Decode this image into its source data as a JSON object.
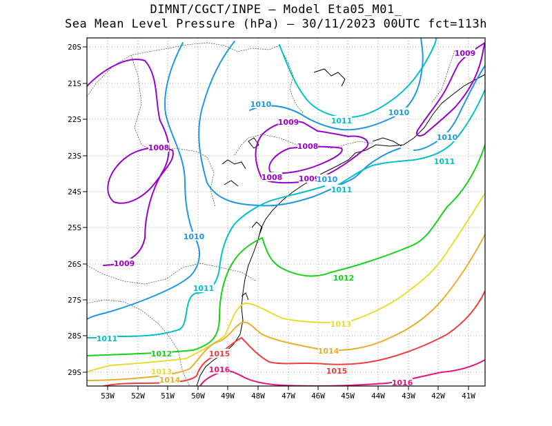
{
  "header": {
    "line1": "DIMNT/CGCT/INPE –  Model Eta05_M01_",
    "line2": "Sea Mean Level Pressure (hPa) – 30/11/2023 00UTC fct=113h"
  },
  "axes": {
    "lat_ticks": [
      "20S",
      "21S",
      "22S",
      "23S",
      "24S",
      "25S",
      "26S",
      "27S",
      "28S",
      "29S"
    ],
    "lon_ticks": [
      "53W",
      "52W",
      "51W",
      "50W",
      "49W",
      "48W",
      "47W",
      "46W",
      "45W",
      "44W",
      "43W",
      "42W",
      "41W"
    ]
  },
  "colors": {
    "1008": "#9900cc",
    "1009": "#9900cc",
    "1010": "#1e96e6",
    "1011": "#00c0c8",
    "1012": "#14d214",
    "1013": "#e6dc32",
    "1014": "#e6af2d",
    "1015": "#f03c3c",
    "1016": "#e61478",
    "coast": "#000000",
    "border": "#444444",
    "grid": "#888888"
  },
  "contour_labels": [
    {
      "text": "1009",
      "level": "1009"
    },
    {
      "text": "1008",
      "level": "1008"
    },
    {
      "text": "1009",
      "level": "1009"
    },
    {
      "text": "1010",
      "level": "1010"
    },
    {
      "text": "1009",
      "level": "1009"
    },
    {
      "text": "1008",
      "level": "1008"
    },
    {
      "text": "1008",
      "level": "1008"
    },
    {
      "text": "1009",
      "level": "1009"
    },
    {
      "text": "1010",
      "level": "1010"
    },
    {
      "text": "1011",
      "level": "1011"
    },
    {
      "text": "1010",
      "level": "1010"
    },
    {
      "text": "1011",
      "level": "1011"
    },
    {
      "text": "1010",
      "level": "1010"
    },
    {
      "text": "1011",
      "level": "1011"
    },
    {
      "text": "1010",
      "level": "1010"
    },
    {
      "text": "1011",
      "level": "1011"
    },
    {
      "text": "1011",
      "level": "1011"
    },
    {
      "text": "1012",
      "level": "1012"
    },
    {
      "text": "1012",
      "level": "1012"
    },
    {
      "text": "1013",
      "level": "1013"
    },
    {
      "text": "1013",
      "level": "1013"
    },
    {
      "text": "1014",
      "level": "1014"
    },
    {
      "text": "1014",
      "level": "1014"
    },
    {
      "text": "1015",
      "level": "1015"
    },
    {
      "text": "1015",
      "level": "1015"
    },
    {
      "text": "1016",
      "level": "1016"
    },
    {
      "text": "1016",
      "level": "1016"
    }
  ]
}
